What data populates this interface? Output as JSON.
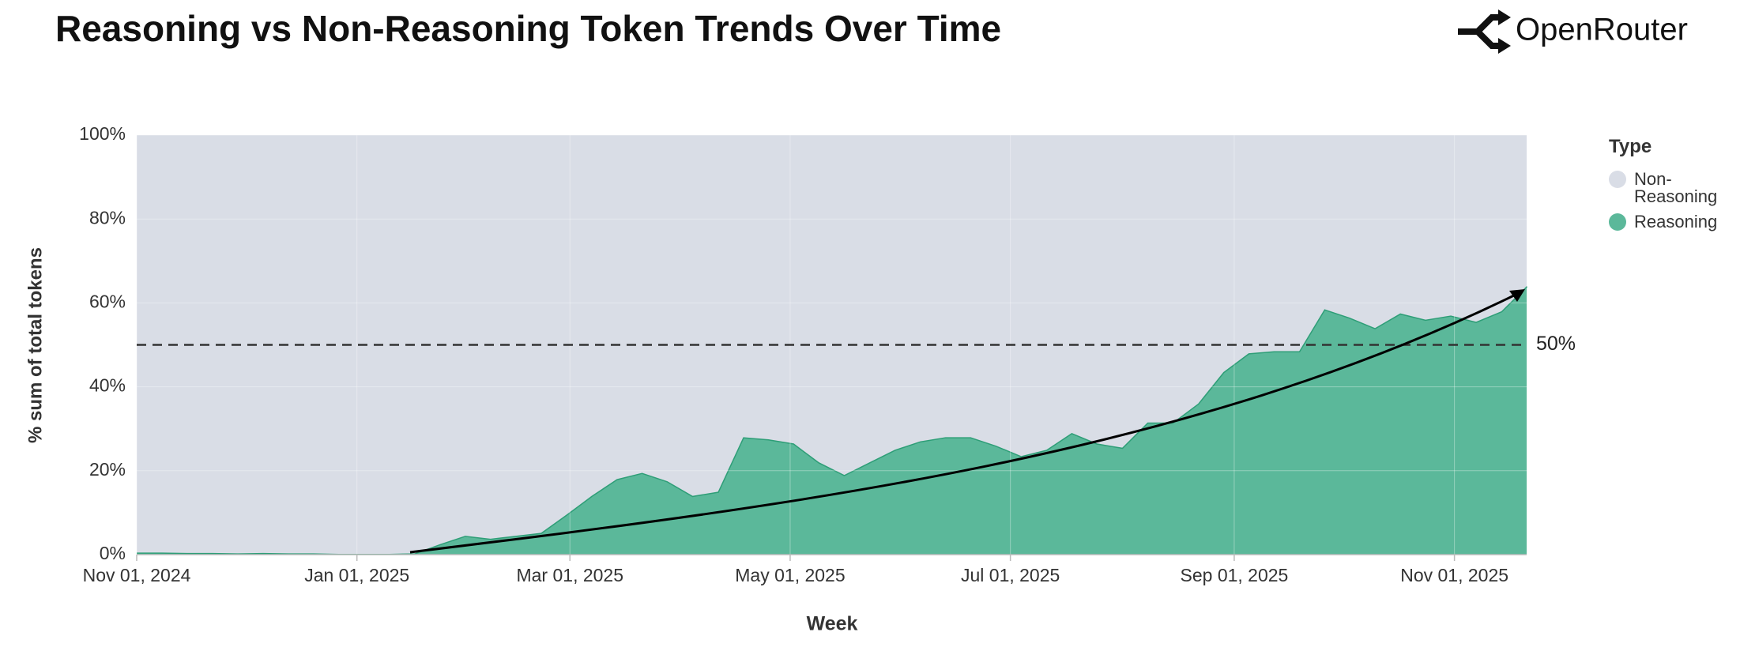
{
  "brand": "OpenRouter",
  "chart_data": {
    "type": "stacked-area",
    "title": "Reasoning vs Non-Reasoning Token Trends Over Time",
    "x_label": "Week",
    "y_label": "% sum of total tokens",
    "legend_title": "Type",
    "legend": "right",
    "grid": true,
    "x": [
      "2024-11-01",
      "2024-11-08",
      "2024-11-15",
      "2024-11-22",
      "2024-11-29",
      "2024-12-06",
      "2024-12-13",
      "2024-12-20",
      "2024-12-27",
      "2025-01-03",
      "2025-01-10",
      "2025-01-17",
      "2025-01-24",
      "2025-01-31",
      "2025-02-07",
      "2025-02-14",
      "2025-02-21",
      "2025-02-28",
      "2025-03-07",
      "2025-03-14",
      "2025-03-21",
      "2025-03-28",
      "2025-04-04",
      "2025-04-11",
      "2025-04-18",
      "2025-04-25",
      "2025-05-02",
      "2025-05-09",
      "2025-05-16",
      "2025-05-23",
      "2025-05-30",
      "2025-06-06",
      "2025-06-13",
      "2025-06-20",
      "2025-06-27",
      "2025-07-04",
      "2025-07-11",
      "2025-07-18",
      "2025-07-25",
      "2025-08-01",
      "2025-08-08",
      "2025-08-15",
      "2025-08-22",
      "2025-08-29",
      "2025-09-05",
      "2025-09-12",
      "2025-09-19",
      "2025-09-26",
      "2025-10-03",
      "2025-10-10",
      "2025-10-17",
      "2025-10-24",
      "2025-10-31",
      "2025-11-07",
      "2025-11-14",
      "2025-11-21"
    ],
    "xlim": [
      "2024-11-01",
      "2025-11-21"
    ],
    "xticks": [
      {
        "value": "2024-11-01",
        "label": "Nov 01, 2024"
      },
      {
        "value": "2025-01-01",
        "label": "Jan 01, 2025"
      },
      {
        "value": "2025-03-01",
        "label": "Mar 01, 2025"
      },
      {
        "value": "2025-05-01",
        "label": "May 01, 2025"
      },
      {
        "value": "2025-07-01",
        "label": "Jul 01, 2025"
      },
      {
        "value": "2025-09-01",
        "label": "Sep 01, 2025"
      },
      {
        "value": "2025-11-01",
        "label": "Nov 01, 2025"
      }
    ],
    "ylim": [
      0,
      100
    ],
    "yticks": [
      {
        "value": 0,
        "label": "0%"
      },
      {
        "value": 20,
        "label": "20%"
      },
      {
        "value": 40,
        "label": "40%"
      },
      {
        "value": 60,
        "label": "60%"
      },
      {
        "value": 80,
        "label": "80%"
      },
      {
        "value": 100,
        "label": "100%"
      }
    ],
    "reference_line": {
      "value": 50,
      "label": "50%"
    },
    "series": [
      {
        "name": "Non-Reasoning",
        "color": "#d9dde6",
        "values": [
          99.5,
          99.5,
          99.6,
          99.6,
          99.7,
          99.6,
          99.7,
          99.7,
          99.8,
          99.8,
          99.8,
          99.7,
          97.5,
          95.5,
          96.2,
          95.5,
          94.8,
          90.5,
          86,
          82,
          80.5,
          82.5,
          86,
          85,
          72,
          72.5,
          73.5,
          78,
          81,
          78,
          75,
          73,
          72,
          72,
          74,
          76.5,
          75,
          71,
          73.5,
          74.5,
          68.5,
          68.5,
          64,
          56.5,
          52,
          51.5,
          51.5,
          41.5,
          43.5,
          46,
          42.5,
          44,
          43,
          44.5,
          42,
          36
        ]
      },
      {
        "name": "Reasoning",
        "color": "#5bb89a",
        "line_color": "#2e9e77",
        "values": [
          0.5,
          0.5,
          0.4,
          0.4,
          0.3,
          0.4,
          0.3,
          0.3,
          0.2,
          0.2,
          0.2,
          0.3,
          2.5,
          4.5,
          3.8,
          4.5,
          5.2,
          9.5,
          14,
          18,
          19.5,
          17.5,
          14,
          15,
          28,
          27.5,
          26.5,
          22,
          19,
          22,
          25,
          27,
          28,
          28,
          26,
          23.5,
          25,
          29,
          26.5,
          25.5,
          31.5,
          31.5,
          36,
          43.5,
          48,
          48.5,
          48.5,
          58.5,
          56.5,
          54,
          57.5,
          56,
          57,
          55.5,
          58,
          64
        ]
      }
    ]
  }
}
